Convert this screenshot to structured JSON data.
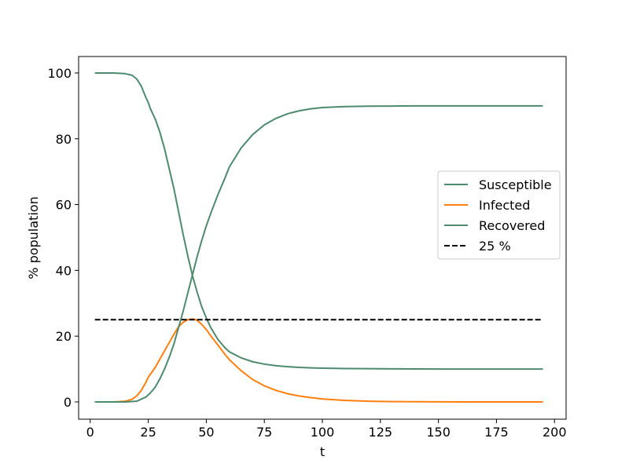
{
  "chart_data": {
    "type": "line",
    "xlabel": "t",
    "ylabel": "% population",
    "xlim": [
      -5,
      205
    ],
    "ylim": [
      -5.25,
      105
    ],
    "xticks": [
      0,
      25,
      50,
      75,
      100,
      125,
      150,
      175,
      200
    ],
    "yticks": [
      0,
      20,
      40,
      60,
      80,
      100
    ],
    "legend_position": "center-right",
    "series": [
      {
        "name": "Susceptible",
        "color": "#4e8a6e",
        "style": "solid",
        "x": [
          2,
          10,
          15,
          18,
          20,
          22,
          24,
          25,
          26,
          28,
          30,
          32,
          34,
          36,
          38,
          40,
          42,
          44,
          46,
          48,
          50,
          52,
          55,
          58,
          60,
          65,
          70,
          75,
          80,
          85,
          90,
          95,
          100,
          110,
          120,
          130,
          140,
          150,
          160,
          175,
          195
        ],
        "y": [
          100,
          100,
          99.8,
          99.3,
          98.2,
          96,
          92.5,
          91,
          89,
          86,
          82,
          77,
          71,
          65,
          58,
          51,
          44.5,
          38.5,
          33.5,
          29,
          25.5,
          22.5,
          19,
          16.5,
          15.2,
          13.4,
          12.2,
          11.5,
          11,
          10.7,
          10.5,
          10.35,
          10.25,
          10.15,
          10.1,
          10.05,
          10.02,
          10,
          10,
          10,
          10
        ]
      },
      {
        "name": "Infected",
        "color": "#ff7f0e",
        "style": "solid",
        "x": [
          2,
          10,
          15,
          18,
          20,
          22,
          24,
          25,
          26,
          28,
          30,
          32,
          34,
          36,
          38,
          40,
          42,
          44,
          45,
          46,
          48,
          50,
          52,
          55,
          58,
          60,
          65,
          70,
          75,
          80,
          85,
          90,
          95,
          100,
          110,
          120,
          130,
          140,
          150,
          160,
          175,
          195
        ],
        "y": [
          0,
          0,
          0.2,
          0.8,
          1.8,
          3.5,
          6,
          7.5,
          8.5,
          10.5,
          13,
          15.5,
          18,
          20.5,
          22.8,
          24.2,
          25,
          25.2,
          25.1,
          24.8,
          23.6,
          22,
          20,
          17.3,
          14.5,
          12.8,
          9.5,
          6.8,
          4.9,
          3.5,
          2.5,
          1.8,
          1.3,
          0.9,
          0.45,
          0.2,
          0.1,
          0.05,
          0.02,
          0,
          0,
          0
        ]
      },
      {
        "name": "Recovered",
        "color": "#4e8a6e",
        "style": "solid",
        "x": [
          2,
          15,
          20,
          24,
          26,
          28,
          30,
          32,
          34,
          36,
          38,
          40,
          42,
          44,
          46,
          48,
          50,
          52,
          55,
          58,
          60,
          65,
          70,
          75,
          80,
          85,
          90,
          95,
          100,
          110,
          120,
          130,
          140,
          150,
          160,
          175,
          195
        ],
        "y": [
          0,
          0,
          0.2,
          1.5,
          2.8,
          4.5,
          7,
          10,
          13.5,
          17.5,
          22.5,
          27.5,
          33,
          38.5,
          44,
          49,
          53.5,
          57.5,
          63,
          68,
          71.5,
          77.2,
          81.3,
          84.2,
          86.2,
          87.6,
          88.5,
          89.1,
          89.5,
          89.8,
          89.9,
          89.95,
          90,
          90,
          90,
          90,
          90
        ]
      },
      {
        "name": "25 %",
        "color": "#000000",
        "style": "dashed",
        "x": [
          2,
          195
        ],
        "y": [
          25,
          25
        ]
      }
    ]
  }
}
